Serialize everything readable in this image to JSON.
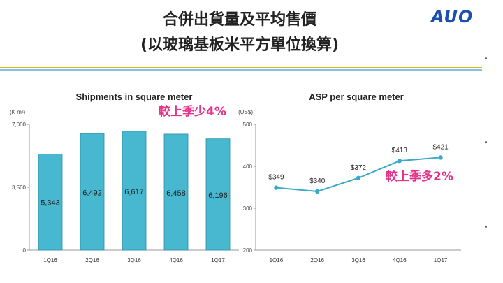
{
  "slide": {
    "title_line1": "合併出貨量及平均售價",
    "title_line2": "(以玻璃基板米平方單位換算)",
    "logo": "AUO"
  },
  "colors": {
    "bar": "#47b8d0",
    "bar_stroke": "#2e8fa8",
    "line": "#3aa9cc",
    "annotation": "#e6318a",
    "accent_yellow": "#f0b400"
  },
  "chart_data": [
    {
      "type": "bar",
      "title": "Shipments in square meter",
      "unit_label": "(K m²)",
      "categories": [
        "1Q16",
        "2Q16",
        "3Q16",
        "4Q16",
        "1Q17"
      ],
      "values": [
        5343,
        6492,
        6617,
        6458,
        6196
      ],
      "value_labels": [
        "5,343",
        "6,492",
        "6,617",
        "6,458",
        "6,196"
      ],
      "ylim": [
        0,
        7000
      ],
      "yticks": [
        0,
        3500,
        7000
      ],
      "ytick_labels": [
        "0",
        "3,500",
        "7,000"
      ],
      "annotation": "較上季少4%",
      "grid": false
    },
    {
      "type": "line",
      "title": "ASP per square meter",
      "unit_label": "(US$)",
      "categories": [
        "1Q16",
        "2Q16",
        "3Q16",
        "4Q16",
        "1Q17"
      ],
      "values": [
        349,
        340,
        372,
        413,
        421
      ],
      "value_labels": [
        "$349",
        "$340",
        "$372",
        "$413",
        "$421"
      ],
      "ylim": [
        200,
        500
      ],
      "yticks": [
        200,
        300,
        400,
        500
      ],
      "ytick_labels": [
        "200",
        "300",
        "400",
        "500"
      ],
      "annotation": "較上季多2%",
      "grid": false
    }
  ]
}
